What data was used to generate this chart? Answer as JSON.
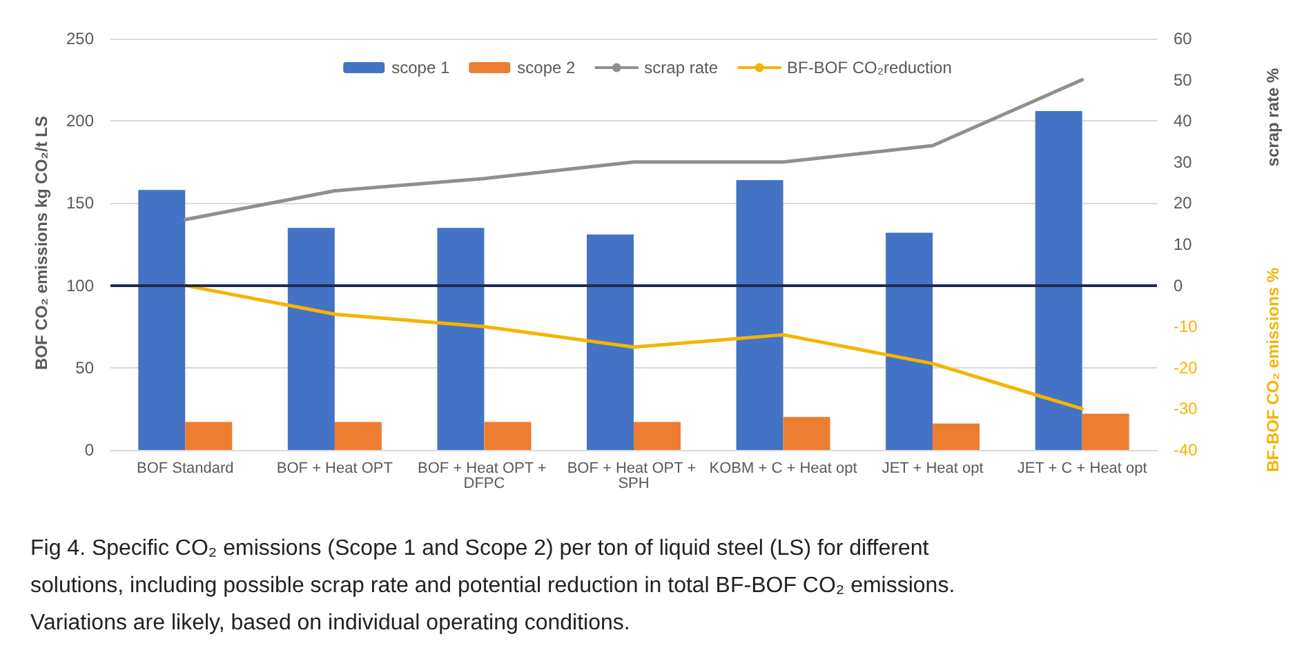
{
  "chart_data": {
    "type": "bar",
    "ylabel": "BOF CO₂ emissions kg CO₂/t LS",
    "y2label": "scrap rate %",
    "y3label": "BF-BOF CO₂ emissions %",
    "categories": [
      "BOF Standard",
      "BOF + Heat OPT",
      "BOF + Heat OPT + DFPC",
      "BOF + Heat OPT + SPH",
      "KOBM + C + Heat opt",
      "JET + Heat opt",
      "JET + C + Heat opt"
    ],
    "series": [
      {
        "name": "scope 1",
        "color": "#4472c4",
        "values": [
          158,
          135,
          135,
          131,
          164,
          132,
          206
        ]
      },
      {
        "name": "scope 2",
        "color": "#ed7d31",
        "values": [
          17,
          17,
          17,
          17,
          20,
          16,
          22
        ]
      },
      {
        "name": "scrap rate",
        "type": "line",
        "axis": "y2",
        "color": "#8f8f8f",
        "values": [
          16,
          23,
          26,
          30,
          30,
          34,
          50
        ]
      },
      {
        "name": "BF-BOF CO₂reduction",
        "type": "line",
        "axis": "y3",
        "color": "#f5b400",
        "values": [
          0,
          -7,
          -10,
          -15,
          -12,
          -19,
          -30
        ]
      }
    ],
    "ylim": [
      0,
      250
    ],
    "yticks": [
      0,
      50,
      100,
      150,
      200,
      250
    ],
    "y2lim": [
      -40,
      60
    ],
    "y2ticks": [
      0,
      10,
      20,
      30,
      40,
      50,
      60
    ],
    "y3lim": [
      -40,
      60
    ],
    "y3ticks": [
      -40,
      -30,
      -20,
      -10
    ],
    "ref_lines": [
      {
        "axis": "y",
        "value": 100,
        "color": "#1f2a4d"
      }
    ],
    "grid": "y",
    "legend": "top",
    "marker": "none",
    "line_style": "solid",
    "annotations": [
      "Fig 4. Specific CO₂ emissions (Scope 1 and Scope 2) per ton of liquid steel (LS) for different solutions, including possible scrap rate and potential reduction in total BF-BOF CO₂ emissions. Variations are likely, based on individual operating conditions."
    ]
  }
}
